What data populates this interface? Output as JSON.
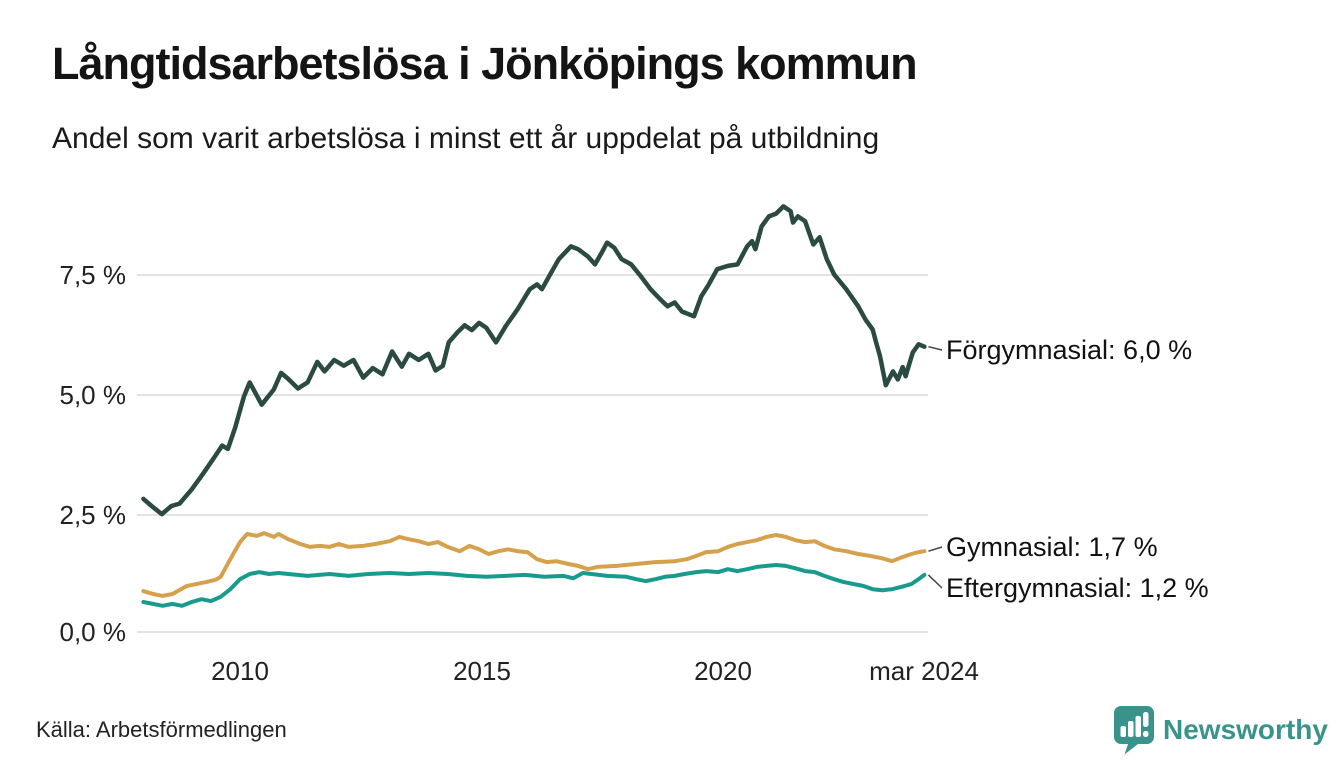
{
  "header": {
    "title": "Långtidsarbetslösa i Jönköpings kommun",
    "subtitle": "Andel som varit arbetslösa i minst ett år uppdelat på utbildning"
  },
  "footer": {
    "source": "Källa: Arbetsförmedlingen",
    "brand": "Newsworthy"
  },
  "colors": {
    "forgymnasial": "#2a4a42",
    "gymnasial": "#d6a14c",
    "eftergymnasial": "#189b8d",
    "brand_teal": "#3a938b",
    "gridline": "#e3e3e3"
  },
  "chart_data": {
    "type": "line",
    "title": "Långtidsarbetslösa i Jönköpings kommun",
    "subtitle": "Andel som varit arbetslösa i minst ett år uppdelat på utbildning",
    "x_unit": "year (decimal; monthly data from 2008 to mar 2024)",
    "y_unit": "percent",
    "xlim": [
      2008.0,
      2024.17
    ],
    "ylim": [
      0,
      9.1
    ],
    "grid": "horizontal",
    "legend_position": "right-edge annotations",
    "yticks": [
      {
        "value": 0.0,
        "label": "0,0 %"
      },
      {
        "value": 2.5,
        "label": "2,5 %"
      },
      {
        "value": 5.0,
        "label": "5,0 %"
      },
      {
        "value": 7.5,
        "label": "7,5 %"
      }
    ],
    "xticks": [
      {
        "value": 2010,
        "label": "2010"
      },
      {
        "value": 2015,
        "label": "2015"
      },
      {
        "value": 2020,
        "label": "2020"
      },
      {
        "value": 2024.17,
        "label": "mar 2024"
      }
    ],
    "series": [
      {
        "key": "forgymnasial",
        "name": "Förgymnasial",
        "color": "#2a4a42",
        "last_value": 6.0,
        "annotation": "Förgymnasial: 6,0 %",
        "points": [
          [
            2008.0,
            2.8
          ],
          [
            2008.17,
            2.65
          ],
          [
            2008.38,
            2.48
          ],
          [
            2008.58,
            2.65
          ],
          [
            2008.75,
            2.7
          ],
          [
            2009.0,
            3.0
          ],
          [
            2009.25,
            3.35
          ],
          [
            2009.5,
            3.72
          ],
          [
            2009.63,
            3.92
          ],
          [
            2009.75,
            3.85
          ],
          [
            2009.9,
            4.3
          ],
          [
            2010.08,
            4.95
          ],
          [
            2010.2,
            5.25
          ],
          [
            2010.45,
            4.78
          ],
          [
            2010.7,
            5.1
          ],
          [
            2010.85,
            5.45
          ],
          [
            2011.0,
            5.32
          ],
          [
            2011.2,
            5.12
          ],
          [
            2011.4,
            5.25
          ],
          [
            2011.6,
            5.68
          ],
          [
            2011.75,
            5.48
          ],
          [
            2011.95,
            5.72
          ],
          [
            2012.15,
            5.6
          ],
          [
            2012.35,
            5.72
          ],
          [
            2012.55,
            5.35
          ],
          [
            2012.75,
            5.55
          ],
          [
            2012.95,
            5.42
          ],
          [
            2013.15,
            5.9
          ],
          [
            2013.35,
            5.58
          ],
          [
            2013.5,
            5.85
          ],
          [
            2013.7,
            5.72
          ],
          [
            2013.9,
            5.85
          ],
          [
            2014.05,
            5.5
          ],
          [
            2014.2,
            5.6
          ],
          [
            2014.32,
            6.09
          ],
          [
            2014.5,
            6.3
          ],
          [
            2014.65,
            6.45
          ],
          [
            2014.8,
            6.35
          ],
          [
            2014.95,
            6.5
          ],
          [
            2015.1,
            6.4
          ],
          [
            2015.3,
            6.09
          ],
          [
            2015.5,
            6.43
          ],
          [
            2015.75,
            6.79
          ],
          [
            2016.0,
            7.21
          ],
          [
            2016.15,
            7.31
          ],
          [
            2016.25,
            7.21
          ],
          [
            2016.4,
            7.48
          ],
          [
            2016.6,
            7.84
          ],
          [
            2016.85,
            8.11
          ],
          [
            2017.0,
            8.05
          ],
          [
            2017.2,
            7.9
          ],
          [
            2017.35,
            7.73
          ],
          [
            2017.5,
            8.0
          ],
          [
            2017.6,
            8.19
          ],
          [
            2017.75,
            8.08
          ],
          [
            2017.9,
            7.84
          ],
          [
            2018.1,
            7.73
          ],
          [
            2018.3,
            7.48
          ],
          [
            2018.5,
            7.21
          ],
          [
            2018.7,
            7.0
          ],
          [
            2018.85,
            6.85
          ],
          [
            2019.0,
            6.93
          ],
          [
            2019.15,
            6.74
          ],
          [
            2019.4,
            6.64
          ],
          [
            2019.55,
            7.06
          ],
          [
            2019.7,
            7.3
          ],
          [
            2019.88,
            7.63
          ],
          [
            2020.1,
            7.7
          ],
          [
            2020.3,
            7.73
          ],
          [
            2020.5,
            8.11
          ],
          [
            2020.6,
            8.22
          ],
          [
            2020.67,
            8.05
          ],
          [
            2020.8,
            8.53
          ],
          [
            2020.95,
            8.74
          ],
          [
            2021.1,
            8.8
          ],
          [
            2021.25,
            8.95
          ],
          [
            2021.4,
            8.85
          ],
          [
            2021.45,
            8.61
          ],
          [
            2021.55,
            8.74
          ],
          [
            2021.7,
            8.64
          ],
          [
            2021.87,
            8.15
          ],
          [
            2022.0,
            8.3
          ],
          [
            2022.15,
            7.84
          ],
          [
            2022.3,
            7.52
          ],
          [
            2022.55,
            7.21
          ],
          [
            2022.8,
            6.85
          ],
          [
            2022.95,
            6.57
          ],
          [
            2023.1,
            6.36
          ],
          [
            2023.17,
            6.09
          ],
          [
            2023.25,
            5.8
          ],
          [
            2023.37,
            5.19
          ],
          [
            2023.52,
            5.48
          ],
          [
            2023.62,
            5.31
          ],
          [
            2023.72,
            5.57
          ],
          [
            2023.78,
            5.38
          ],
          [
            2023.93,
            5.88
          ],
          [
            2024.05,
            6.05
          ],
          [
            2024.17,
            6.0
          ]
        ]
      },
      {
        "key": "gymnasial",
        "name": "Gymnasial",
        "color": "#d6a14c",
        "last_value": 1.7,
        "annotation": "Gymnasial: 1,7 %",
        "points": [
          [
            2008.0,
            0.86
          ],
          [
            2008.2,
            0.8
          ],
          [
            2008.4,
            0.76
          ],
          [
            2008.6,
            0.8
          ],
          [
            2008.9,
            0.97
          ],
          [
            2009.3,
            1.05
          ],
          [
            2009.5,
            1.1
          ],
          [
            2009.6,
            1.16
          ],
          [
            2009.8,
            1.53
          ],
          [
            2010.0,
            1.89
          ],
          [
            2010.15,
            2.06
          ],
          [
            2010.35,
            2.02
          ],
          [
            2010.5,
            2.08
          ],
          [
            2010.7,
            2.0
          ],
          [
            2010.8,
            2.06
          ],
          [
            2011.0,
            1.95
          ],
          [
            2011.25,
            1.85
          ],
          [
            2011.45,
            1.79
          ],
          [
            2011.65,
            1.81
          ],
          [
            2011.85,
            1.79
          ],
          [
            2012.05,
            1.85
          ],
          [
            2012.25,
            1.79
          ],
          [
            2012.55,
            1.81
          ],
          [
            2012.8,
            1.85
          ],
          [
            2013.1,
            1.91
          ],
          [
            2013.3,
            2.0
          ],
          [
            2013.5,
            1.95
          ],
          [
            2013.7,
            1.91
          ],
          [
            2013.9,
            1.85
          ],
          [
            2014.1,
            1.89
          ],
          [
            2014.3,
            1.79
          ],
          [
            2014.55,
            1.7
          ],
          [
            2014.75,
            1.81
          ],
          [
            2014.95,
            1.74
          ],
          [
            2015.15,
            1.64
          ],
          [
            2015.35,
            1.7
          ],
          [
            2015.55,
            1.74
          ],
          [
            2015.75,
            1.7
          ],
          [
            2015.95,
            1.68
          ],
          [
            2016.15,
            1.53
          ],
          [
            2016.35,
            1.47
          ],
          [
            2016.55,
            1.49
          ],
          [
            2016.8,
            1.43
          ],
          [
            2017.0,
            1.39
          ],
          [
            2017.2,
            1.32
          ],
          [
            2017.4,
            1.37
          ],
          [
            2017.8,
            1.39
          ],
          [
            2018.2,
            1.43
          ],
          [
            2018.6,
            1.47
          ],
          [
            2019.0,
            1.49
          ],
          [
            2019.25,
            1.53
          ],
          [
            2019.45,
            1.6
          ],
          [
            2019.65,
            1.68
          ],
          [
            2019.9,
            1.7
          ],
          [
            2020.1,
            1.79
          ],
          [
            2020.3,
            1.85
          ],
          [
            2020.5,
            1.89
          ],
          [
            2020.7,
            1.93
          ],
          [
            2020.9,
            2.0
          ],
          [
            2021.1,
            2.04
          ],
          [
            2021.3,
            2.0
          ],
          [
            2021.5,
            1.93
          ],
          [
            2021.7,
            1.89
          ],
          [
            2021.9,
            1.91
          ],
          [
            2022.1,
            1.81
          ],
          [
            2022.3,
            1.74
          ],
          [
            2022.55,
            1.7
          ],
          [
            2022.8,
            1.64
          ],
          [
            2023.05,
            1.6
          ],
          [
            2023.3,
            1.55
          ],
          [
            2023.5,
            1.49
          ],
          [
            2023.7,
            1.57
          ],
          [
            2023.9,
            1.64
          ],
          [
            2024.05,
            1.68
          ],
          [
            2024.17,
            1.7
          ]
        ]
      },
      {
        "key": "eftergymnasial",
        "name": "Eftergymnasial",
        "color": "#189b8d",
        "last_value": 1.2,
        "annotation": "Eftergymnasial: 1,2 %",
        "points": [
          [
            2008.0,
            0.63
          ],
          [
            2008.4,
            0.55
          ],
          [
            2008.6,
            0.59
          ],
          [
            2008.8,
            0.55
          ],
          [
            2009.0,
            0.63
          ],
          [
            2009.2,
            0.69
          ],
          [
            2009.4,
            0.65
          ],
          [
            2009.6,
            0.74
          ],
          [
            2009.8,
            0.9
          ],
          [
            2010.0,
            1.11
          ],
          [
            2010.2,
            1.22
          ],
          [
            2010.4,
            1.26
          ],
          [
            2010.6,
            1.22
          ],
          [
            2010.8,
            1.24
          ],
          [
            2011.0,
            1.22
          ],
          [
            2011.4,
            1.18
          ],
          [
            2011.85,
            1.22
          ],
          [
            2012.25,
            1.18
          ],
          [
            2012.65,
            1.22
          ],
          [
            2013.1,
            1.24
          ],
          [
            2013.5,
            1.22
          ],
          [
            2013.9,
            1.24
          ],
          [
            2014.3,
            1.22
          ],
          [
            2014.7,
            1.18
          ],
          [
            2015.1,
            1.16
          ],
          [
            2015.5,
            1.18
          ],
          [
            2015.9,
            1.2
          ],
          [
            2016.3,
            1.16
          ],
          [
            2016.7,
            1.18
          ],
          [
            2016.9,
            1.13
          ],
          [
            2017.1,
            1.24
          ],
          [
            2017.6,
            1.18
          ],
          [
            2018.0,
            1.16
          ],
          [
            2018.2,
            1.11
          ],
          [
            2018.4,
            1.07
          ],
          [
            2018.6,
            1.11
          ],
          [
            2018.8,
            1.16
          ],
          [
            2019.0,
            1.18
          ],
          [
            2019.2,
            1.22
          ],
          [
            2019.45,
            1.26
          ],
          [
            2019.65,
            1.28
          ],
          [
            2019.9,
            1.26
          ],
          [
            2020.1,
            1.32
          ],
          [
            2020.3,
            1.28
          ],
          [
            2020.5,
            1.32
          ],
          [
            2020.7,
            1.37
          ],
          [
            2020.9,
            1.39
          ],
          [
            2021.1,
            1.41
          ],
          [
            2021.3,
            1.39
          ],
          [
            2021.5,
            1.34
          ],
          [
            2021.7,
            1.28
          ],
          [
            2021.9,
            1.26
          ],
          [
            2022.1,
            1.18
          ],
          [
            2022.3,
            1.11
          ],
          [
            2022.5,
            1.05
          ],
          [
            2022.7,
            1.01
          ],
          [
            2022.9,
            0.97
          ],
          [
            2023.1,
            0.9
          ],
          [
            2023.3,
            0.88
          ],
          [
            2023.5,
            0.9
          ],
          [
            2023.7,
            0.95
          ],
          [
            2023.9,
            1.01
          ],
          [
            2024.05,
            1.11
          ],
          [
            2024.17,
            1.2
          ]
        ]
      }
    ]
  }
}
